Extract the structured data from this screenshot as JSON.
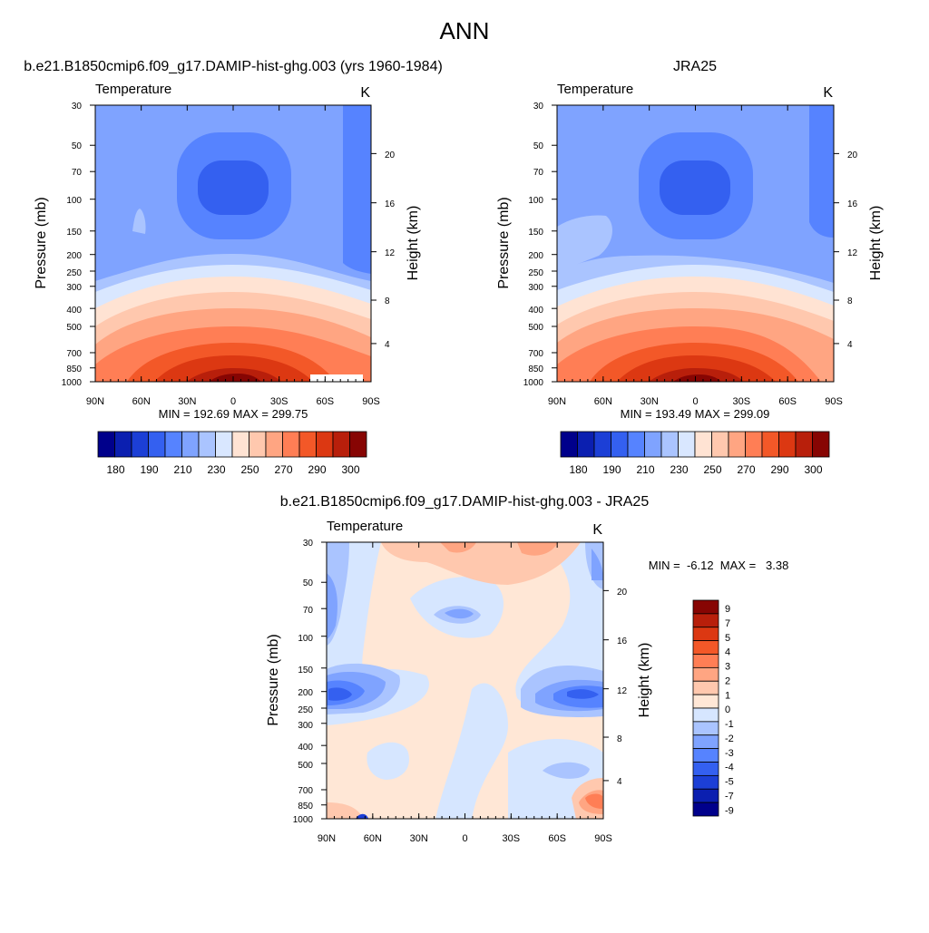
{
  "page_title": "ANN",
  "palette": {
    "abs": [
      "#00008b",
      "#0b1fb0",
      "#1c3fd6",
      "#3460f0",
      "#5683ff",
      "#7fa3ff",
      "#aac4ff",
      "#d9e7ff",
      "#ffe3d3",
      "#ffc8ae",
      "#ffa582",
      "#ff7e55",
      "#f35828",
      "#dc3812",
      "#b81f0b",
      "#870503"
    ],
    "diff": [
      "#00008b",
      "#0b1fb0",
      "#1c3fd6",
      "#3460f0",
      "#5683ff",
      "#7fa3ff",
      "#aac4ff",
      "#d6e6ff",
      "#ffe7d6",
      "#ffc8ae",
      "#ffa582",
      "#ff7e55",
      "#f35828",
      "#dc3812",
      "#b81f0b",
      "#870503"
    ]
  },
  "chart_data": [
    {
      "id": "model",
      "type": "contour",
      "title": "b.e21.B1850cmip6.f09_g17.DAMIP-hist-ghg.003 (yrs 1960-1984)",
      "left_label": "Temperature",
      "right_label": "K",
      "ylabel": "Pressure (mb)",
      "y2label": "Height (km)",
      "x_ticks": [
        "90N",
        "60N",
        "30N",
        "0",
        "30S",
        "60S",
        "90S"
      ],
      "y_ticks": [
        "30",
        "50",
        "70",
        "100",
        "150",
        "200",
        "250",
        "300",
        "400",
        "500",
        "700",
        "850",
        "1000"
      ],
      "y2_ticks": [
        "20",
        "16",
        "12",
        "8",
        "4"
      ],
      "stats": "MIN = 192.69  MAX = 299.75",
      "min": 192.69,
      "max": 299.75,
      "colorbar_labels": [
        "180",
        "190",
        "210",
        "230",
        "250",
        "270",
        "290",
        "300"
      ]
    },
    {
      "id": "obs",
      "type": "contour",
      "title": "JRA25",
      "left_label": "Temperature",
      "right_label": "K",
      "ylabel": "Pressure (mb)",
      "y2label": "Height (km)",
      "x_ticks": [
        "90N",
        "60N",
        "30N",
        "0",
        "30S",
        "60S",
        "90S"
      ],
      "y_ticks": [
        "30",
        "50",
        "70",
        "100",
        "150",
        "200",
        "250",
        "300",
        "400",
        "500",
        "700",
        "850",
        "1000"
      ],
      "y2_ticks": [
        "20",
        "16",
        "12",
        "8",
        "4"
      ],
      "stats": "MIN = 193.49  MAX = 299.09",
      "min": 193.49,
      "max": 299.09,
      "colorbar_labels": [
        "180",
        "190",
        "210",
        "230",
        "250",
        "270",
        "290",
        "300"
      ]
    },
    {
      "id": "diff",
      "type": "contour",
      "title": "b.e21.B1850cmip6.f09_g17.DAMIP-hist-ghg.003 - JRA25",
      "left_label": "Temperature",
      "right_label": "K",
      "ylabel": "Pressure (mb)",
      "y2label": "Height (km)",
      "x_ticks": [
        "90N",
        "60N",
        "30N",
        "0",
        "30S",
        "60S",
        "90S"
      ],
      "y_ticks": [
        "30",
        "50",
        "70",
        "100",
        "150",
        "200",
        "250",
        "300",
        "400",
        "500",
        "700",
        "850",
        "1000"
      ],
      "y2_ticks": [
        "20",
        "16",
        "12",
        "8",
        "4"
      ],
      "stats": "MIN =  -6.12  MAX =   3.38",
      "min": -6.12,
      "max": 3.38,
      "colorbar_labels": [
        "9",
        "7",
        "5",
        "4",
        "3",
        "2",
        "1",
        "0",
        "-1",
        "-2",
        "-3",
        "-4",
        "-5",
        "-7",
        "-9"
      ]
    }
  ]
}
